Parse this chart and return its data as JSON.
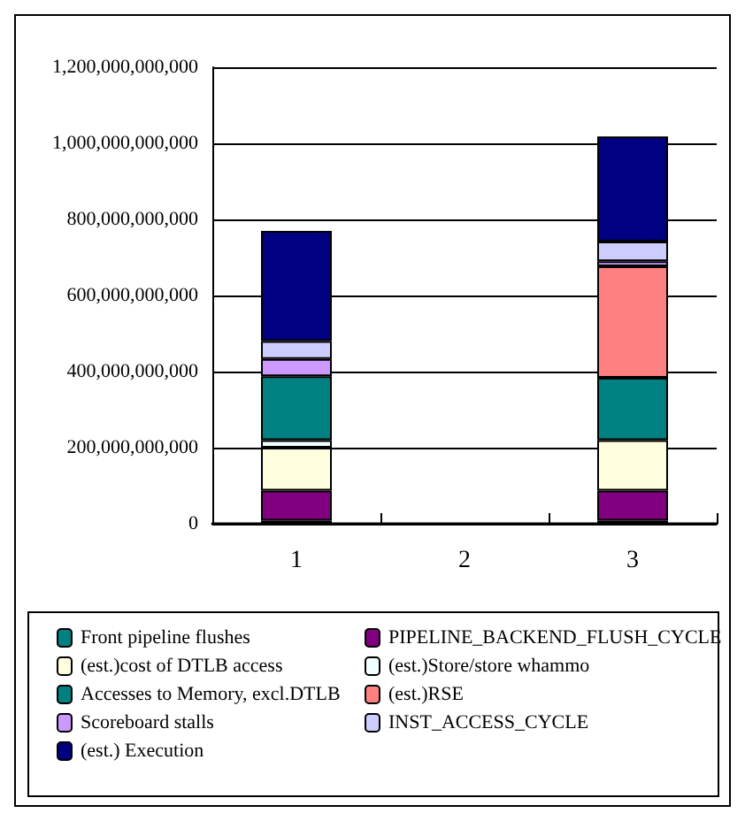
{
  "chart_data": {
    "type": "bar",
    "stacked": true,
    "categories": [
      "1",
      "2",
      "3"
    ],
    "ylim": [
      0,
      1200000000000
    ],
    "yticks": [
      0,
      {
        "value": 200000000000,
        "label": "200,000,000,000"
      },
      {
        "value": 400000000000,
        "label": "400,000,000,000"
      },
      {
        "value": 600000000000,
        "label": "600,000,000,000"
      },
      {
        "value": 800000000000,
        "label": "800,000,000,000"
      },
      {
        "value": 1000000000000,
        "label": "1,000,000,000,000"
      },
      {
        "value": 1200000000000,
        "label": "1,200,000,000,000"
      }
    ],
    "grid": "y",
    "legend": "bottom",
    "series": [
      {
        "name": "Front pipeline flushes",
        "color": "#008080",
        "values": [
          8000000000,
          null,
          8000000000
        ]
      },
      {
        "name": "PIPELINE_BACKEND_FLUSH_CYCLE",
        "color": "#800080",
        "values": [
          79000000000,
          null,
          79000000000
        ]
      },
      {
        "name": "(est.)cost of DTLB access",
        "color": "#ffffe0",
        "values": [
          113000000000,
          null,
          133000000000
        ]
      },
      {
        "name": "(est.)Store/store whammo",
        "color": "#f0ffff",
        "values": [
          20000000000,
          null,
          null
        ]
      },
      {
        "name": "Accesses to Memory, excl.DTLB",
        "color": "#008080",
        "values": [
          168000000000,
          null,
          164000000000
        ]
      },
      {
        "name": "(est.)RSE",
        "color": "#ff8080",
        "values": [
          null,
          null,
          293000000000
        ]
      },
      {
        "name": "Scoreboard stalls",
        "color": "#cc99ff",
        "values": [
          45000000000,
          null,
          13000000000
        ]
      },
      {
        "name": "INST_ACCESS_CYCLE",
        "color": "#ccccff",
        "values": [
          47000000000,
          null,
          52000000000
        ]
      },
      {
        "name": "(est.) Execution",
        "color": "#000080",
        "values": [
          290000000000,
          null,
          276000000000
        ]
      }
    ]
  }
}
